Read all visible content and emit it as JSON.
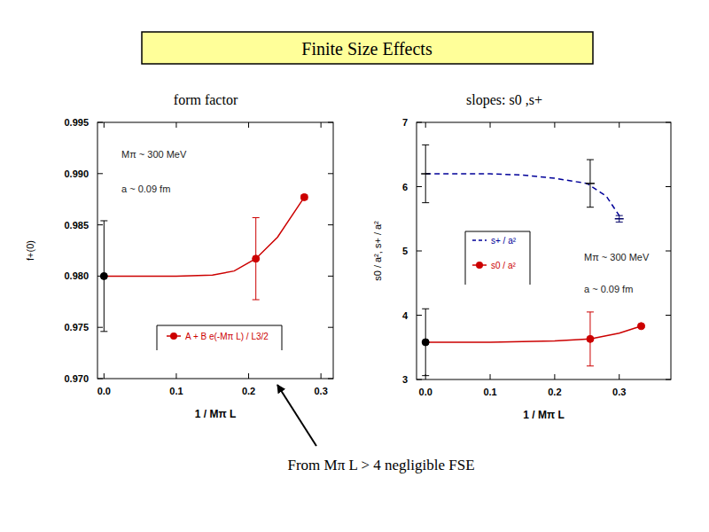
{
  "title": "Finite Size Effects",
  "annotation": "From Mπ L > 4 negligible FSE",
  "chart_data": [
    {
      "type": "line",
      "title": "form factor",
      "x_label": "1 / Mπ L",
      "y_label": "f+(0)",
      "xlim": [
        -0.009,
        0.317
      ],
      "ylim": [
        0.97,
        0.995
      ],
      "xticks": [
        {
          "value": 0,
          "label": "0.0"
        },
        0.1,
        0.2,
        0.3
      ],
      "yticks": [
        {
          "value": 0.97,
          "label": "0.970"
        },
        0.975,
        {
          "value": 0.98,
          "label": "0.980"
        },
        0.985,
        {
          "value": 0.99,
          "label": "0.990"
        },
        0.995
      ],
      "annotations": [
        "Mπ ~ 300 MeV",
        "a ~ 0.09 fm"
      ],
      "grid": false,
      "legend": "lower right",
      "series": [
        {
          "type": "line",
          "color": "#cc0000",
          "line_style": "solid",
          "x": [
            0,
            0.05,
            0.1,
            0.15,
            0.18,
            0.21,
            0.24,
            0.277
          ],
          "values": [
            0.98,
            0.98,
            0.98,
            0.9801,
            0.9805,
            0.9817,
            0.9838,
            0.9877
          ]
        },
        {
          "type": "scatter",
          "name": "A + B e(-Mπ L) / L3/2",
          "color": "#cc0000",
          "marker": "circle",
          "colors": [
            "#000000",
            "#cc0000",
            "#cc0000"
          ],
          "x": [
            0,
            0.21,
            0.277
          ],
          "values": [
            0.98,
            0.9817,
            0.9877
          ],
          "errors": [
            0.0054,
            0.004,
            0.0002
          ]
        }
      ]
    },
    {
      "type": "line",
      "title": "slopes: s0 ,s+",
      "x_label": "1 / Mπ L",
      "y_label": "s0 / a², s+ / a²",
      "xlim": [
        -0.014,
        0.38
      ],
      "ylim": [
        3,
        7
      ],
      "xticks": [
        {
          "value": 0,
          "label": "0.0"
        },
        0.1,
        0.2,
        0.3
      ],
      "yticks": [
        3,
        4,
        5,
        6,
        7
      ],
      "annotations": [
        "Mπ ~ 300 MeV",
        "a ~ 0.09 fm"
      ],
      "grid": false,
      "legend": "center right",
      "series": [
        {
          "type": "line",
          "name": "s+ / a²",
          "color": "#000099",
          "line_style": "dashed",
          "x": [
            0,
            0.1,
            0.15,
            0.2,
            0.25,
            0.28,
            0.3
          ],
          "values": [
            6.2,
            6.2,
            6.18,
            6.13,
            6.05,
            5.85,
            5.55
          ]
        },
        {
          "type": "scatter",
          "color": "#000000",
          "marker": "dash",
          "colors": [
            "#000000",
            "#000000",
            "#000066"
          ],
          "x": [
            0,
            0.255,
            0.3
          ],
          "values": [
            6.2,
            6.05,
            5.5
          ],
          "errors": [
            0.45,
            0.37,
            0.05
          ]
        },
        {
          "type": "line",
          "color": "#cc0000",
          "line_style": "solid",
          "x": [
            0,
            0.1,
            0.2,
            0.255,
            0.3,
            0.334
          ],
          "values": [
            3.58,
            3.58,
            3.6,
            3.63,
            3.72,
            3.83
          ]
        },
        {
          "type": "scatter",
          "name": "s0 / a²",
          "color": "#cc0000",
          "marker": "circle",
          "colors": [
            "#000000",
            "#cc0000",
            "#cc0000"
          ],
          "x": [
            0,
            0.255,
            0.334
          ],
          "values": [
            3.58,
            3.63,
            3.83
          ],
          "errors": [
            0.52,
            0.42,
            0.02
          ]
        }
      ]
    }
  ]
}
